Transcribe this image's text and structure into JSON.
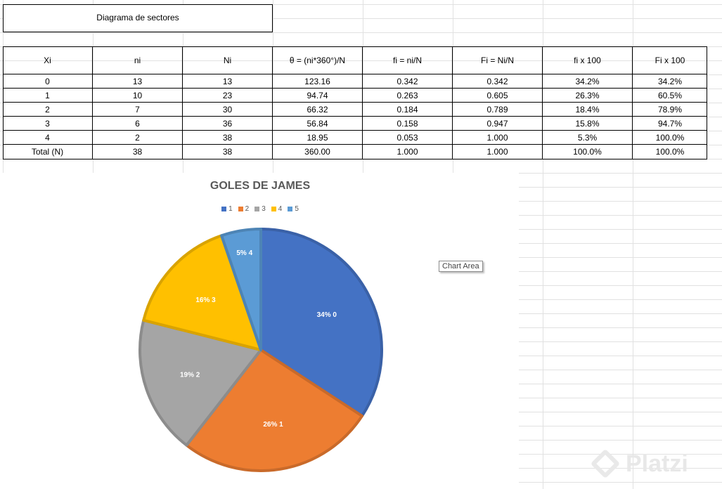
{
  "sheet": {
    "title": "Diagrama de sectores",
    "table": {
      "headers": [
        "Xi",
        "ni",
        "Ni",
        "θ = (ni*360°)/N",
        "fi = ni/N",
        "Fi = Ni/N",
        "fi x 100",
        "Fi x 100"
      ],
      "rows": [
        [
          "0",
          "13",
          "13",
          "123.16",
          "0.342",
          "0.342",
          "34.2%",
          "34.2%"
        ],
        [
          "1",
          "10",
          "23",
          "94.74",
          "0.263",
          "0.605",
          "26.3%",
          "60.5%"
        ],
        [
          "2",
          "7",
          "30",
          "66.32",
          "0.184",
          "0.789",
          "18.4%",
          "78.9%"
        ],
        [
          "3",
          "6",
          "36",
          "56.84",
          "0.158",
          "0.947",
          "15.8%",
          "94.7%"
        ],
        [
          "4",
          "2",
          "38",
          "18.95",
          "0.053",
          "1.000",
          "5.3%",
          "100.0%"
        ],
        [
          "Total (N)",
          "38",
          "38",
          "360.00",
          "1.000",
          "1.000",
          "100.0%",
          "100.0%"
        ]
      ]
    },
    "tooltip": "Chart Area",
    "watermark": "Platzi"
  },
  "chart_data": {
    "type": "pie",
    "title": "GOLES DE JAMES",
    "legend_position": "top",
    "legend": [
      "1",
      "2",
      "3",
      "4",
      "5"
    ],
    "slices": [
      {
        "label": "34% 0",
        "value": 13,
        "color": "#4472C4"
      },
      {
        "label": "26% 1",
        "value": 10,
        "color": "#ED7D31"
      },
      {
        "label": "19% 2",
        "value": 7,
        "color": "#A5A5A5"
      },
      {
        "label": "16% 3",
        "value": 6,
        "color": "#FFC000"
      },
      {
        "label": "5% 4",
        "value": 2,
        "color": "#5B9BD5"
      }
    ]
  }
}
